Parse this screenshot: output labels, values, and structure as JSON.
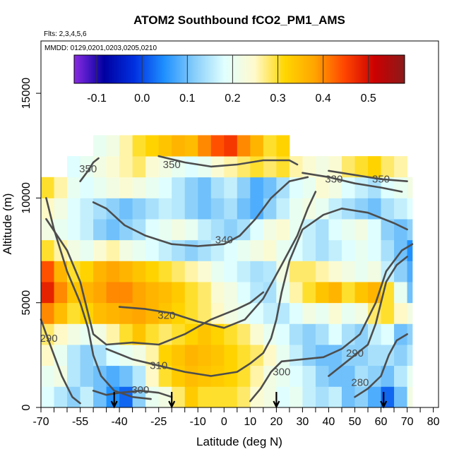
{
  "chart_data": {
    "type": "heatmap",
    "title": "ATOM2 Southbound fCO2_PM1_AMS",
    "flights_note": "Flts: 2,3,4,5,6",
    "dates_note": "MMDD: 0129,0201,0203,0205,0210",
    "xlabel": "Latitude (deg N)",
    "ylabel": "Altitude (m)",
    "xlim": [
      -70,
      82
    ],
    "ylim": [
      0,
      17500
    ],
    "x_ticks": [
      -70,
      -65,
      -60,
      -55,
      -50,
      -45,
      -40,
      -35,
      -30,
      -25,
      -20,
      -15,
      -10,
      -5,
      0,
      5,
      10,
      15,
      20,
      25,
      30,
      35,
      40,
      45,
      50,
      55,
      60,
      65,
      70,
      75,
      80
    ],
    "x_tick_labels": [
      "-70",
      "-55",
      "-40",
      "-25",
      "-10",
      "0",
      "10",
      "20",
      "30",
      "40",
      "50",
      "60",
      "70",
      "80"
    ],
    "x_tick_label_values": [
      -70,
      -55,
      -40,
      -25,
      -10,
      0,
      10,
      20,
      30,
      40,
      50,
      60,
      70,
      80
    ],
    "y_ticks": [
      0,
      5000,
      10000,
      15000
    ],
    "y_tick_labels": [
      "0",
      "5000",
      "10000",
      "15000"
    ],
    "colorbar": {
      "range": [
        -0.15,
        0.58
      ],
      "tick_values": [
        -0.1,
        0,
        0.1,
        0.2,
        0.3,
        0.4,
        0.5
      ],
      "tick_labels": [
        "-0.1",
        "0.0",
        "0.1",
        "0.2",
        "0.3",
        "0.4",
        "0.5"
      ],
      "palette": [
        "#8a2be2",
        "#0000a0",
        "#0030e0",
        "#1e90ff",
        "#87cefa",
        "#e0ffff",
        "#fffacd",
        "#ffd700",
        "#ffa500",
        "#ff4500",
        "#cc0000",
        "#8b1a1a"
      ]
    },
    "field": {
      "description_of_axes": "rows = altitude bins (m), cols = latitude bins (deg N); values = fCO2_PM1_AMS",
      "lat_bins": [
        -70,
        -65,
        -60,
        -55,
        -50,
        -45,
        -40,
        -35,
        -30,
        -25,
        -20,
        -15,
        -10,
        -5,
        0,
        5,
        10,
        15,
        20,
        25,
        30,
        35,
        40,
        45,
        50,
        55,
        60,
        65,
        70
      ],
      "alt_bins": [
        0,
        1000,
        2000,
        3000,
        4000,
        5000,
        6000,
        7000,
        8000,
        9000,
        10000,
        11000,
        12000
      ],
      "values": [
        [
          0.18,
          0.15,
          0.12,
          0.16,
          0.1,
          0.05,
          0.02,
          0.12,
          0.2,
          0.22,
          0.28,
          0.33,
          0.3,
          0.3,
          0.3,
          0.28,
          0.24,
          0.22,
          0.18,
          0.2,
          0.16,
          0.14,
          0.16,
          0.1,
          0.12,
          0.08,
          0.02,
          0.1,
          0.22
        ],
        [
          0.2,
          0.22,
          0.15,
          0.12,
          0.1,
          0.08,
          0.1,
          0.15,
          0.25,
          0.3,
          0.33,
          0.35,
          0.34,
          0.33,
          0.32,
          0.3,
          0.26,
          0.22,
          0.2,
          0.18,
          0.16,
          0.12,
          0.1,
          0.1,
          0.14,
          0.12,
          0.1,
          0.15,
          0.2
        ],
        [
          0.25,
          0.2,
          0.15,
          0.12,
          0.14,
          0.18,
          0.2,
          0.22,
          0.26,
          0.32,
          0.34,
          0.36,
          0.35,
          0.34,
          0.32,
          0.3,
          0.28,
          0.25,
          0.2,
          0.16,
          0.12,
          0.1,
          0.1,
          0.12,
          0.12,
          0.14,
          0.14,
          0.12,
          0.15
        ],
        [
          0.28,
          0.25,
          0.22,
          0.2,
          0.22,
          0.26,
          0.3,
          0.34,
          0.3,
          0.28,
          0.3,
          0.32,
          0.34,
          0.32,
          0.3,
          0.28,
          0.24,
          0.2,
          0.18,
          0.14,
          0.12,
          0.14,
          0.18,
          0.14,
          0.12,
          0.16,
          0.18,
          0.1,
          0.12
        ],
        [
          0.4,
          0.35,
          0.3,
          0.32,
          0.35,
          0.36,
          0.37,
          0.38,
          0.36,
          0.34,
          0.32,
          0.3,
          0.28,
          0.25,
          0.22,
          0.2,
          0.18,
          0.16,
          0.15,
          0.18,
          0.22,
          0.2,
          0.24,
          0.2,
          0.22,
          0.28,
          0.3,
          0.25,
          0.22
        ],
        [
          0.48,
          0.4,
          0.34,
          0.36,
          0.38,
          0.4,
          0.4,
          0.38,
          0.36,
          0.35,
          0.33,
          0.3,
          0.28,
          0.24,
          0.22,
          0.18,
          0.15,
          0.14,
          0.2,
          0.26,
          0.3,
          0.34,
          0.36,
          0.3,
          0.34,
          0.36,
          0.3,
          0.2,
          0.1
        ],
        [
          0.44,
          0.36,
          0.3,
          0.32,
          0.36,
          0.38,
          0.36,
          0.34,
          0.32,
          0.3,
          0.28,
          0.26,
          0.24,
          0.2,
          0.18,
          0.16,
          0.14,
          0.15,
          0.22,
          0.28,
          0.28,
          0.26,
          0.24,
          0.22,
          0.2,
          0.22,
          0.16,
          0.12,
          0.08
        ],
        [
          0.3,
          0.26,
          0.22,
          0.2,
          0.24,
          0.26,
          0.22,
          0.2,
          0.18,
          0.16,
          0.14,
          0.12,
          0.14,
          0.16,
          0.18,
          0.2,
          0.22,
          0.24,
          0.2,
          0.18,
          0.16,
          0.14,
          0.16,
          0.18,
          0.2,
          0.18,
          0.14,
          0.1,
          0.05
        ],
        [
          0.22,
          0.2,
          0.18,
          0.16,
          0.12,
          0.1,
          0.12,
          0.14,
          0.18,
          0.2,
          0.22,
          0.2,
          0.16,
          0.14,
          0.12,
          0.14,
          0.18,
          0.22,
          0.24,
          0.2,
          0.16,
          0.14,
          0.18,
          0.2,
          0.22,
          0.18,
          0.12,
          0.1,
          0.12
        ],
        [
          0.25,
          0.22,
          0.18,
          0.16,
          0.14,
          0.12,
          0.1,
          0.12,
          0.14,
          0.16,
          0.15,
          0.12,
          0.1,
          0.12,
          0.14,
          0.1,
          0.08,
          0.12,
          0.16,
          0.2,
          0.22,
          0.2,
          0.16,
          0.14,
          0.12,
          0.1,
          0.14,
          0.16,
          0.18
        ],
        [
          0.3,
          0.26,
          0.2,
          0.18,
          0.2,
          0.22,
          0.24,
          0.22,
          0.2,
          0.18,
          0.15,
          0.12,
          0.1,
          0.14,
          0.16,
          0.12,
          0.08,
          0.1,
          0.14,
          0.18,
          0.2,
          0.24,
          0.22,
          0.18,
          0.16,
          0.14,
          0.18,
          0.2,
          0.22
        ],
        [
          null,
          null,
          0.18,
          0.2,
          0.22,
          0.24,
          0.26,
          0.28,
          0.24,
          0.22,
          0.2,
          0.18,
          0.2,
          0.24,
          0.26,
          0.28,
          0.3,
          0.28,
          0.3,
          0.26,
          0.24,
          0.22,
          0.24,
          0.28,
          0.3,
          0.32,
          0.28,
          0.26,
          null
        ],
        [
          null,
          null,
          null,
          null,
          0.2,
          0.22,
          0.26,
          0.3,
          0.32,
          0.34,
          0.36,
          0.35,
          0.4,
          0.44,
          0.46,
          0.4,
          0.36,
          0.3,
          0.32,
          null,
          null,
          null,
          null,
          null,
          null,
          null,
          null,
          null,
          null
        ]
      ],
      "data_extent": {
        "lat": [
          -70,
          72
        ],
        "alt_top_by_lat": [
          [
            -70,
            10500
          ],
          [
            -60,
            11500
          ],
          [
            -50,
            12500
          ],
          [
            -30,
            12500
          ],
          [
            0,
            12000
          ],
          [
            20,
            11500
          ],
          [
            30,
            11500
          ],
          [
            72,
            11500
          ]
        ]
      }
    },
    "contours": [
      {
        "level": "350",
        "lines": [
          [
            [
              -55,
              10800
            ],
            [
              -52,
              11300
            ],
            [
              -50,
              11700
            ],
            [
              -48,
              11900
            ]
          ],
          [
            [
              -25,
              12000
            ],
            [
              -15,
              11700
            ],
            [
              -5,
              11500
            ],
            [
              5,
              11600
            ],
            [
              15,
              11800
            ],
            [
              25,
              11800
            ],
            [
              28,
              11600
            ]
          ],
          [
            [
              40,
              11300
            ],
            [
              50,
              11100
            ],
            [
              60,
              10900
            ],
            [
              65,
              10850
            ],
            [
              70,
              10800
            ]
          ]
        ],
        "labels": [
          [
            -52,
            11400
          ],
          [
            -20,
            11600
          ],
          [
            60,
            10900
          ]
        ]
      },
      {
        "level": "340",
        "lines": [
          [
            [
              -50,
              9800
            ],
            [
              -45,
              9500
            ],
            [
              -38,
              8700
            ],
            [
              -30,
              8200
            ],
            [
              -20,
              7800
            ],
            [
              -10,
              7700
            ],
            [
              0,
              7800
            ],
            [
              6,
              8200
            ],
            [
              12,
              9000
            ],
            [
              18,
              10000
            ],
            [
              25,
              10800
            ],
            [
              32,
              11000
            ]
          ],
          [
            [
              -68,
              9000
            ],
            [
              -60,
              7500
            ],
            [
              -55,
              6000
            ],
            [
              -52,
              4500
            ],
            [
              -50,
              3500
            ],
            [
              -45,
              3000
            ],
            [
              -35,
              3100
            ],
            [
              -25,
              3000
            ],
            [
              -15,
              3500
            ],
            [
              -5,
              4200
            ],
            [
              5,
              4700
            ],
            [
              10,
              5000
            ],
            [
              15,
              5500
            ]
          ]
        ],
        "labels": [
          [
            0,
            8000
          ]
        ]
      },
      {
        "level": "330",
        "lines": [
          [
            [
              30,
              11200
            ],
            [
              40,
              11000
            ],
            [
              50,
              10700
            ],
            [
              60,
              10500
            ],
            [
              68,
              10300
            ]
          ],
          [
            [
              -68,
              10000
            ],
            [
              -65,
              8500
            ],
            [
              -60,
              6500
            ],
            [
              -55,
              5000
            ],
            [
              -52,
              3800
            ],
            [
              -50,
              2500
            ],
            [
              -47,
              1500
            ],
            [
              -42,
              800
            ],
            [
              -35,
              500
            ],
            [
              -28,
              400
            ]
          ]
        ],
        "labels": [
          [
            42,
            10900
          ]
        ]
      },
      {
        "level": "320",
        "lines": [
          [
            [
              -40,
              4800
            ],
            [
              -30,
              4700
            ],
            [
              -20,
              4500
            ],
            [
              -10,
              4100
            ],
            [
              0,
              3800
            ],
            [
              8,
              4200
            ],
            [
              15,
              5200
            ],
            [
              22,
              6800
            ],
            [
              28,
              8200
            ],
            [
              32,
              9500
            ],
            [
              35,
              10300
            ]
          ]
        ],
        "labels": [
          [
            -22,
            4400
          ]
        ]
      },
      {
        "level": "310",
        "lines": [
          [
            [
              -45,
              2800
            ],
            [
              -35,
              2300
            ],
            [
              -25,
              2000
            ],
            [
              -15,
              1700
            ],
            [
              -5,
              1500
            ],
            [
              5,
              1700
            ],
            [
              10,
              2100
            ],
            [
              15,
              2600
            ],
            [
              18,
              3300
            ],
            [
              20,
              4200
            ],
            [
              22,
              5500
            ],
            [
              25,
              7000
            ],
            [
              30,
              8500
            ],
            [
              38,
              9200
            ],
            [
              45,
              9500
            ],
            [
              55,
              9300
            ],
            [
              65,
              8800
            ],
            [
              70,
              8500
            ]
          ]
        ],
        "labels": [
          [
            -25,
            2000
          ]
        ]
      },
      {
        "level": "300",
        "lines": [
          [
            [
              -50,
              800
            ],
            [
              -45,
              600
            ],
            [
              -40,
              700
            ],
            [
              -32,
              800
            ],
            [
              -25,
              700
            ],
            [
              -20,
              500
            ]
          ],
          [
            [
              10,
              300
            ],
            [
              14,
              900
            ],
            [
              18,
              1700
            ],
            [
              22,
              2200
            ],
            [
              30,
              2300
            ],
            [
              38,
              2400
            ],
            [
              45,
              2800
            ],
            [
              52,
              3500
            ],
            [
              58,
              5000
            ],
            [
              62,
              6500
            ],
            [
              68,
              7500
            ],
            [
              72,
              7800
            ]
          ]
        ],
        "labels": [
          [
            -32,
            850
          ],
          [
            22,
            1700
          ]
        ]
      },
      {
        "level": "290",
        "lines": [
          [
            [
              -70,
              4200
            ],
            [
              -68,
              3500
            ],
            [
              -65,
              2500
            ],
            [
              -62,
              1500
            ],
            [
              -60,
              1000
            ],
            [
              -58,
              500
            ],
            [
              -55,
              200
            ]
          ],
          [
            [
              40,
              1500
            ],
            [
              45,
              2000
            ],
            [
              50,
              2500
            ],
            [
              55,
              3000
            ],
            [
              58,
              4000
            ],
            [
              60,
              5000
            ],
            [
              62,
              6000
            ],
            [
              66,
              6800
            ],
            [
              70,
              7200
            ]
          ]
        ],
        "labels": [
          [
            -67,
            3300
          ],
          [
            50,
            2600
          ]
        ]
      },
      {
        "level": "280",
        "lines": [
          [
            [
              50,
              500
            ],
            [
              55,
              900
            ],
            [
              60,
              1500
            ],
            [
              63,
              2500
            ],
            [
              66,
              3200
            ],
            [
              70,
              3500
            ]
          ]
        ],
        "labels": [
          [
            52,
            1200
          ]
        ]
      }
    ],
    "flight_markers_lat": [
      -42,
      -20,
      20,
      61
    ],
    "grid": false,
    "colorbar_placement": "top-inside"
  }
}
